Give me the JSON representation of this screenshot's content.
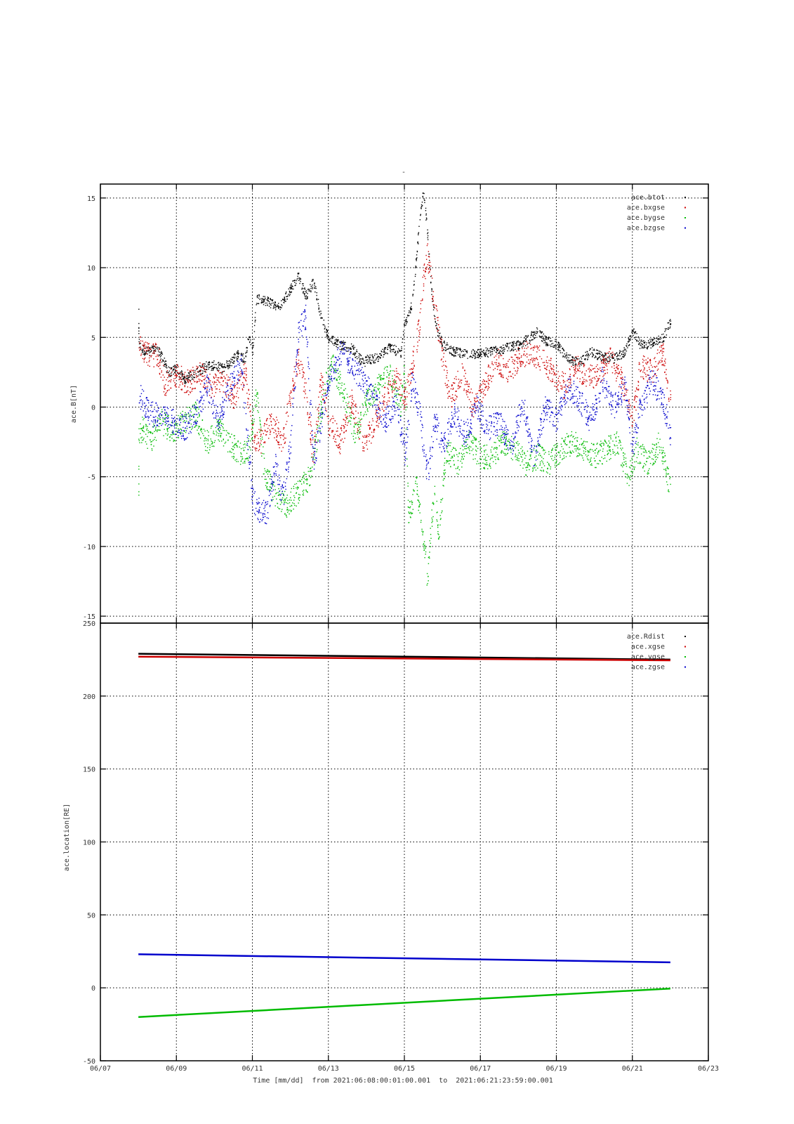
{
  "chart_data": [
    {
      "type": "scatter",
      "title": "-",
      "ylabel": "ace.B[nT]",
      "xlabel": "",
      "ylim": [
        -15.5,
        16
      ],
      "yticks": [
        -15,
        -10,
        -5,
        0,
        5,
        10,
        15
      ],
      "xlim": [
        "06/07",
        "06/23"
      ],
      "xticks": [
        "06/07",
        "06/09",
        "06/11",
        "06/13",
        "06/15",
        "06/17",
        "06/19",
        "06/21",
        "06/23"
      ],
      "grid": true,
      "legend": "top-right",
      "series": [
        {
          "name": "ace.btot",
          "color": "#000000",
          "x": [
            8.0,
            8.0,
            8.05,
            8.2,
            8.5,
            8.8,
            9.0,
            9.2,
            9.5,
            9.8,
            10.0,
            10.2,
            10.4,
            10.6,
            10.8,
            10.9,
            11.0,
            11.1,
            11.4,
            11.7,
            12.0,
            12.2,
            12.4,
            12.6,
            12.8,
            13.0,
            13.3,
            13.6,
            13.9,
            14.0,
            14.3,
            14.6,
            14.9,
            15.0,
            15.2,
            15.3,
            15.4,
            15.5,
            15.6,
            15.7,
            15.8,
            16.0,
            16.3,
            16.6,
            17.0,
            17.3,
            17.6,
            18.0,
            18.3,
            18.5,
            18.7,
            19.0,
            19.3,
            19.6,
            19.9,
            20.2,
            20.5,
            20.8,
            21.0,
            21.2,
            21.5,
            21.8,
            22.0
          ],
          "y": [
            7.2,
            4.8,
            4.3,
            4.0,
            4.2,
            2.5,
            2.8,
            2.0,
            2.5,
            3.0,
            3.0,
            2.8,
            3.2,
            3.8,
            3.5,
            5.2,
            4.0,
            7.8,
            7.6,
            7.2,
            8.5,
            9.5,
            8.0,
            9.0,
            6.5,
            5.0,
            4.5,
            4.3,
            3.2,
            3.4,
            3.6,
            4.3,
            3.9,
            6.0,
            7.5,
            10.5,
            13.5,
            15.5,
            12.5,
            8.5,
            6.0,
            4.5,
            4.0,
            3.8,
            3.9,
            4.0,
            4.2,
            4.5,
            5.0,
            5.5,
            4.8,
            4.5,
            3.5,
            3.2,
            4.0,
            3.6,
            3.5,
            4.0,
            5.5,
            4.5,
            4.6,
            5.0,
            6.2
          ]
        },
        {
          "name": "ace.bxgse",
          "color": "#cc0000",
          "x": [
            8.0,
            8.05,
            8.2,
            8.5,
            8.7,
            8.8,
            9.0,
            9.3,
            9.6,
            9.9,
            10.2,
            10.5,
            10.8,
            11.0,
            11.2,
            11.5,
            11.8,
            12.0,
            12.2,
            12.4,
            12.6,
            12.8,
            13.0,
            13.3,
            13.6,
            13.9,
            14.2,
            14.5,
            14.8,
            15.0,
            15.2,
            15.4,
            15.5,
            15.6,
            15.8,
            16.0,
            16.2,
            16.5,
            16.8,
            17.1,
            17.4,
            17.7,
            18.0,
            18.3,
            18.6,
            18.9,
            19.2,
            19.5,
            19.8,
            20.1,
            20.4,
            20.7,
            21.0,
            21.2,
            21.5,
            21.8,
            22.0
          ],
          "y": [
            4.8,
            4.4,
            3.8,
            3.8,
            1.5,
            2.0,
            2.3,
            1.8,
            2.5,
            1.5,
            2.0,
            0.8,
            2.5,
            -2.0,
            -2.5,
            -1.0,
            -2.5,
            1.0,
            3.5,
            1.0,
            -3.5,
            2.0,
            -1.0,
            -2.5,
            0.5,
            -2.5,
            -1.5,
            1.0,
            2.0,
            0.5,
            3.0,
            6.0,
            9.5,
            11.0,
            7.0,
            3.5,
            0.5,
            2.5,
            0.0,
            1.5,
            3.5,
            2.5,
            3.5,
            4.0,
            3.5,
            2.5,
            1.5,
            3.0,
            2.0,
            2.5,
            3.5,
            2.0,
            -1.0,
            3.0,
            2.5,
            4.0,
            0.5
          ]
        },
        {
          "name": "ace.bygse",
          "color": "#00bb00",
          "x": [
            8.0,
            8.0,
            8.1,
            8.3,
            8.6,
            8.9,
            9.2,
            9.5,
            9.8,
            10.1,
            10.4,
            10.7,
            10.9,
            11.1,
            11.3,
            11.6,
            11.9,
            12.2,
            12.5,
            12.7,
            12.9,
            13.1,
            13.4,
            13.7,
            14.0,
            14.3,
            14.6,
            14.9,
            15.0,
            15.1,
            15.3,
            15.5,
            15.6,
            15.7,
            15.8,
            15.9,
            16.1,
            16.4,
            16.7,
            17.0,
            17.3,
            17.6,
            17.9,
            18.2,
            18.5,
            18.8,
            19.1,
            19.4,
            19.7,
            20.0,
            20.3,
            20.6,
            20.9,
            21.1,
            21.4,
            21.7,
            22.0
          ],
          "y": [
            -6.7,
            -2.0,
            -1.5,
            -2.5,
            -1.0,
            -1.8,
            -1.0,
            -0.5,
            -2.5,
            -1.5,
            -2.5,
            -3.5,
            -3.0,
            1.0,
            -4.5,
            -6.5,
            -7.0,
            -6.0,
            -5.0,
            -2.0,
            1.5,
            3.0,
            1.0,
            -2.0,
            0.5,
            1.5,
            2.5,
            0.0,
            3.0,
            -8.0,
            -5.5,
            -9.5,
            -12.5,
            -8.0,
            -6.0,
            -9.0,
            -3.0,
            -4.0,
            -2.5,
            -3.5,
            -3.5,
            -2.5,
            -3.0,
            -4.0,
            -3.5,
            -4.0,
            -3.0,
            -2.5,
            -3.0,
            -3.5,
            -3.0,
            -2.5,
            -5.0,
            -3.0,
            -4.0,
            -2.5,
            -6.0
          ]
        },
        {
          "name": "ace.bzgse",
          "color": "#0000cc",
          "x": [
            8.0,
            8.1,
            8.3,
            8.6,
            8.9,
            9.2,
            9.5,
            9.8,
            10.1,
            10.4,
            10.7,
            11.0,
            11.2,
            11.4,
            11.6,
            11.8,
            12.0,
            12.2,
            12.4,
            12.6,
            12.8,
            13.0,
            13.3,
            13.6,
            13.9,
            14.2,
            14.5,
            14.8,
            15.0,
            15.2,
            15.4,
            15.6,
            15.8,
            16.0,
            16.3,
            16.6,
            16.9,
            17.2,
            17.5,
            17.8,
            18.1,
            18.4,
            18.7,
            19.0,
            19.3,
            19.6,
            19.9,
            20.2,
            20.5,
            20.8,
            21.0,
            21.2,
            21.5,
            21.8,
            22.0
          ],
          "y": [
            1.0,
            0.5,
            -0.5,
            -0.5,
            -1.0,
            -1.5,
            -0.5,
            1.5,
            -1.0,
            1.5,
            3.0,
            -6.5,
            -7.5,
            -7.5,
            -4.0,
            -6.5,
            -2.5,
            5.5,
            6.5,
            -4.0,
            -1.0,
            2.0,
            4.0,
            3.0,
            2.0,
            0.5,
            -1.0,
            0.5,
            -3.5,
            2.0,
            -0.5,
            -5.0,
            -1.0,
            -3.0,
            -0.5,
            -2.0,
            0.0,
            -1.5,
            -1.0,
            -3.0,
            0.5,
            -3.5,
            0.0,
            -1.0,
            1.5,
            0.5,
            -1.0,
            2.0,
            0.0,
            1.5,
            -3.0,
            0.0,
            2.0,
            0.5,
            -2.0
          ]
        }
      ]
    },
    {
      "type": "line",
      "title": "",
      "ylabel": "ace.location[RE]",
      "xlabel": "Time [mm/dd]  from 2021:06:08:00:01:00.001  to  2021:06:21:23:59:00.001",
      "ylim": [
        -50,
        250
      ],
      "yticks": [
        -50,
        0,
        50,
        100,
        150,
        200,
        250
      ],
      "xlim": [
        "06/07",
        "06/23"
      ],
      "xticks": [
        "06/07",
        "06/09",
        "06/11",
        "06/13",
        "06/15",
        "06/17",
        "06/19",
        "06/21",
        "06/23"
      ],
      "grid": true,
      "legend": "top-right",
      "series": [
        {
          "name": "ace.Rdist",
          "color": "#000000",
          "x": [
            8.0,
            22.0
          ],
          "y": [
            229,
            225
          ]
        },
        {
          "name": "ace.xgse",
          "color": "#cc0000",
          "x": [
            8.0,
            22.0
          ],
          "y": [
            227,
            224.5
          ]
        },
        {
          "name": "ace.ygse",
          "color": "#00bb00",
          "x": [
            8.0,
            22.0
          ],
          "y": [
            -20,
            -0.5
          ]
        },
        {
          "name": "ace.zgse",
          "color": "#0000cc",
          "x": [
            8.0,
            22.0
          ],
          "y": [
            23,
            17.5
          ]
        }
      ]
    }
  ]
}
